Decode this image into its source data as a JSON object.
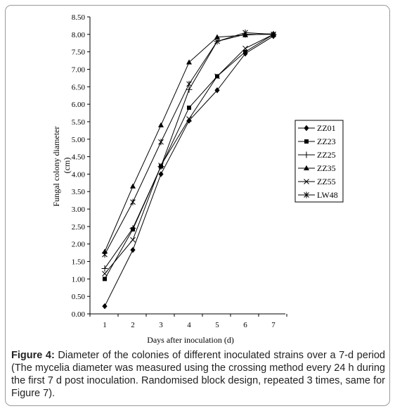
{
  "chart_data": {
    "type": "line",
    "xlabel": "Days after inoculation (d)",
    "ylabel": "Fungal colony diameter (cm)",
    "ylabel_lines": [
      "Fungal colony diameter",
      "(cm)"
    ],
    "x": [
      1,
      2,
      3,
      4,
      5,
      6,
      7
    ],
    "x_ticks": [
      "1",
      "2",
      "3",
      "4",
      "5",
      "6",
      "7"
    ],
    "ylim": [
      0,
      8.5
    ],
    "y_ticks": [
      "0.00",
      "0.50",
      "1.00",
      "1.50",
      "2.00",
      "2.50",
      "3.00",
      "3.50",
      "4.00",
      "4.50",
      "5.00",
      "5.50",
      "6.00",
      "6.50",
      "7.00",
      "7.50",
      "8.00",
      "8.50"
    ],
    "grid": false,
    "legend_position": "right",
    "series": [
      {
        "name": "ZZ01",
        "marker": "diamond",
        "values": [
          0.22,
          1.83,
          4.0,
          5.53,
          6.4,
          7.45,
          7.95
        ]
      },
      {
        "name": "ZZ23",
        "marker": "square",
        "values": [
          1.0,
          2.42,
          4.22,
          5.9,
          6.8,
          7.5,
          8.0
        ]
      },
      {
        "name": "ZZ25",
        "marker": "plus",
        "values": [
          1.3,
          2.45,
          4.22,
          6.42,
          7.8,
          8.0,
          8.0
        ]
      },
      {
        "name": "ZZ35",
        "marker": "triangle",
        "values": [
          1.78,
          3.65,
          5.4,
          7.2,
          7.92,
          7.98,
          8.02
        ]
      },
      {
        "name": "ZZ55",
        "marker": "x",
        "values": [
          1.15,
          2.12,
          4.25,
          5.58,
          6.8,
          7.6,
          8.0
        ]
      },
      {
        "name": "LW48",
        "marker": "star",
        "values": [
          1.7,
          3.2,
          4.92,
          6.58,
          7.8,
          8.05,
          8.0
        ]
      }
    ]
  },
  "caption": {
    "label": "Figure 4:",
    "text": " Diameter of the colonies of different inoculated strains over a 7-d period (The mycelia diameter was measured using the crossing method every 24 h during the first 7 d post inoculation. Randomised block design, repeated 3 times, same for Figure 7)."
  }
}
